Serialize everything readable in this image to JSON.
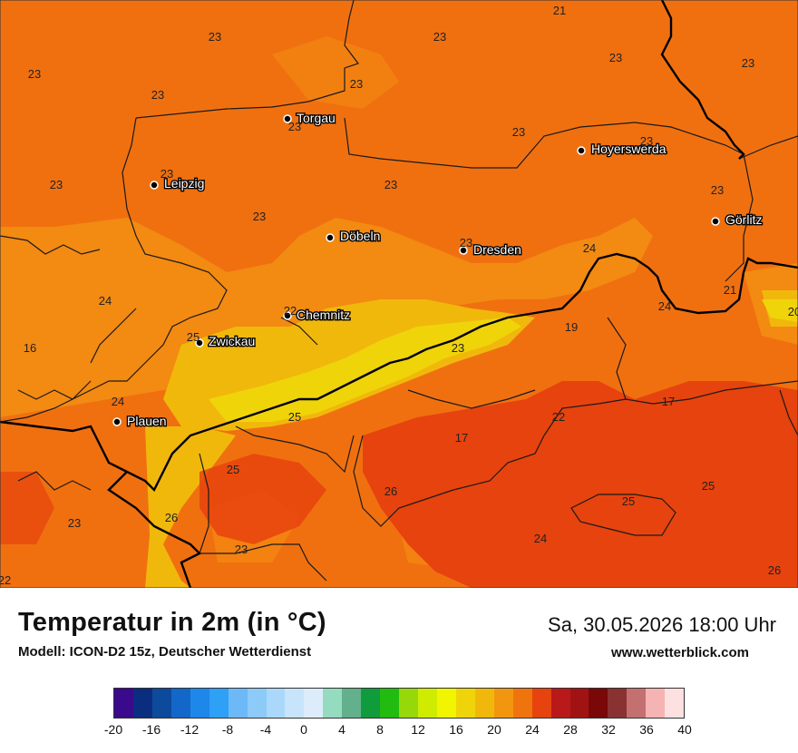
{
  "title": "Temperatur in 2m (in °C)",
  "model": "Modell: ICON-D2 15z, Deutscher Wetterdienst",
  "datetime": "Sa, 30.05.2026 18:00 Uhr",
  "website": "www.wetterblick.com",
  "cities": [
    {
      "name": "Torgau"
    },
    {
      "name": "Hoyerswerda"
    },
    {
      "name": "Leipzig"
    },
    {
      "name": "Döbeln"
    },
    {
      "name": "Dresden"
    },
    {
      "name": "Görlitz"
    },
    {
      "name": "Chemnitz"
    },
    {
      "name": "Zwickau"
    },
    {
      "name": "Plauen"
    }
  ],
  "temperature_labels": [
    "21",
    "23",
    "23",
    "23",
    "23",
    "23",
    "23",
    "23",
    "23",
    "23",
    "23",
    "23",
    "23",
    "23",
    "23",
    "23",
    "23",
    "24",
    "24",
    "21",
    "24",
    "20",
    "22",
    "19",
    "25",
    "16",
    "23",
    "24",
    "17",
    "25",
    "22",
    "17",
    "25",
    "25",
    "26",
    "25",
    "26",
    "23",
    "24",
    "23",
    "26",
    "22",
    "21"
  ],
  "legend": {
    "colors": [
      "#3a0a8c",
      "#0a2d80",
      "#0d4a9c",
      "#1267c9",
      "#1e87ea",
      "#2ea0f5",
      "#6db9f7",
      "#8ccaf8",
      "#aad8fa",
      "#c8e4fb",
      "#dcecfb",
      "#94dbbf",
      "#62b08c",
      "#109c3c",
      "#22bc10",
      "#96d80a",
      "#cfec00",
      "#f1f500",
      "#f0d40a",
      "#f1b80c",
      "#f3960f",
      "#f0740e",
      "#e6430e",
      "#b91919",
      "#a11313",
      "#7a0808",
      "#8a3131",
      "#c47070",
      "#f6b3b3",
      "#fde0e0"
    ],
    "ticks": [
      "-20",
      "-16",
      "-12",
      "-8",
      "-4",
      "0",
      "4",
      "8",
      "12",
      "16",
      "20",
      "24",
      "28",
      "32",
      "36",
      "40"
    ]
  }
}
